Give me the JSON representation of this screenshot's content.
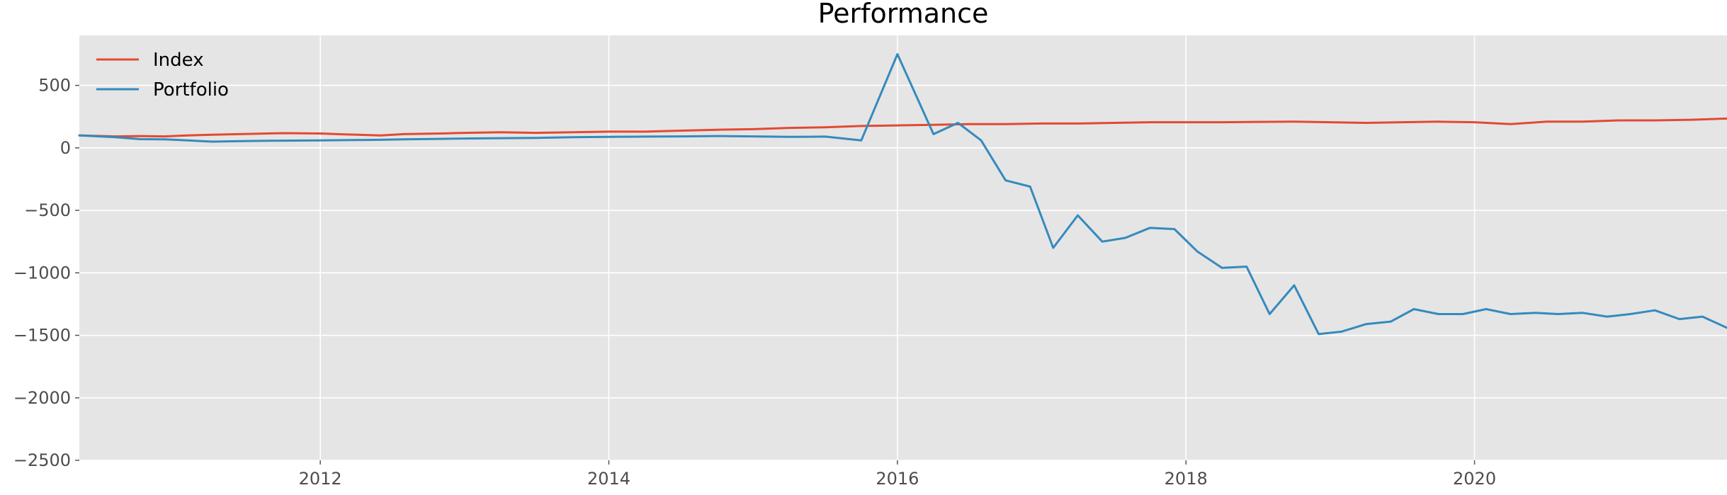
{
  "chart_data": {
    "type": "line",
    "title": "Performance",
    "xlabel": "",
    "ylabel": "",
    "xlim": [
      2010.33,
      2021.75
    ],
    "ylim": [
      -2500,
      900
    ],
    "x_ticks": [
      {
        "value": 2012,
        "label": "2012"
      },
      {
        "value": 2014,
        "label": "2014"
      },
      {
        "value": 2016,
        "label": "2016"
      },
      {
        "value": 2018,
        "label": "2018"
      },
      {
        "value": 2020,
        "label": "2020"
      }
    ],
    "y_ticks": [
      {
        "value": 500,
        "label": "500"
      },
      {
        "value": 0,
        "label": "0"
      },
      {
        "value": -500,
        "label": "−500"
      },
      {
        "value": -1000,
        "label": "−1000"
      },
      {
        "value": -1500,
        "label": "−1500"
      },
      {
        "value": -2000,
        "label": "−2000"
      },
      {
        "value": -2500,
        "label": "−2500"
      }
    ],
    "grid": true,
    "legend_position": "top-left",
    "background": "#e5e5e5",
    "series": [
      {
        "name": "Index",
        "color": "#e24a33",
        "points": [
          [
            2010.33,
            100
          ],
          [
            2010.58,
            92
          ],
          [
            2010.75,
            95
          ],
          [
            2010.92,
            92
          ],
          [
            2011.08,
            100
          ],
          [
            2011.25,
            105
          ],
          [
            2011.5,
            112
          ],
          [
            2011.75,
            118
          ],
          [
            2012.0,
            115
          ],
          [
            2012.17,
            108
          ],
          [
            2012.42,
            100
          ],
          [
            2012.58,
            110
          ],
          [
            2012.83,
            115
          ],
          [
            2013.0,
            120
          ],
          [
            2013.25,
            125
          ],
          [
            2013.5,
            120
          ],
          [
            2013.75,
            125
          ],
          [
            2014.0,
            130
          ],
          [
            2014.25,
            130
          ],
          [
            2014.5,
            138
          ],
          [
            2014.75,
            145
          ],
          [
            2015.0,
            150
          ],
          [
            2015.25,
            160
          ],
          [
            2015.5,
            165
          ],
          [
            2015.75,
            175
          ],
          [
            2016.0,
            180
          ],
          [
            2016.25,
            185
          ],
          [
            2016.5,
            190
          ],
          [
            2016.75,
            190
          ],
          [
            2017.0,
            195
          ],
          [
            2017.25,
            195
          ],
          [
            2017.5,
            200
          ],
          [
            2017.75,
            205
          ],
          [
            2018.0,
            205
          ],
          [
            2018.25,
            205
          ],
          [
            2018.5,
            208
          ],
          [
            2018.75,
            210
          ],
          [
            2019.0,
            205
          ],
          [
            2019.25,
            200
          ],
          [
            2019.5,
            205
          ],
          [
            2019.75,
            210
          ],
          [
            2020.0,
            205
          ],
          [
            2020.25,
            190
          ],
          [
            2020.5,
            210
          ],
          [
            2020.75,
            210
          ],
          [
            2021.0,
            220
          ],
          [
            2021.25,
            220
          ],
          [
            2021.5,
            225
          ],
          [
            2021.75,
            235
          ]
        ]
      },
      {
        "name": "Portfolio",
        "color": "#348abd",
        "points": [
          [
            2010.33,
            100
          ],
          [
            2010.58,
            85
          ],
          [
            2010.75,
            70
          ],
          [
            2010.92,
            68
          ],
          [
            2011.08,
            60
          ],
          [
            2011.25,
            50
          ],
          [
            2011.5,
            55
          ],
          [
            2011.75,
            58
          ],
          [
            2012.0,
            60
          ],
          [
            2012.17,
            62
          ],
          [
            2012.42,
            65
          ],
          [
            2012.58,
            68
          ],
          [
            2012.83,
            72
          ],
          [
            2013.0,
            75
          ],
          [
            2013.25,
            78
          ],
          [
            2013.5,
            80
          ],
          [
            2013.75,
            85
          ],
          [
            2014.0,
            88
          ],
          [
            2014.25,
            90
          ],
          [
            2014.5,
            92
          ],
          [
            2014.75,
            95
          ],
          [
            2015.0,
            92
          ],
          [
            2015.25,
            88
          ],
          [
            2015.5,
            90
          ],
          [
            2015.75,
            60
          ],
          [
            2016.0,
            750
          ],
          [
            2016.25,
            110
          ],
          [
            2016.42,
            200
          ],
          [
            2016.58,
            60
          ],
          [
            2016.75,
            -260
          ],
          [
            2016.92,
            -310
          ],
          [
            2017.08,
            -800
          ],
          [
            2017.25,
            -540
          ],
          [
            2017.42,
            -750
          ],
          [
            2017.58,
            -720
          ],
          [
            2017.75,
            -640
          ],
          [
            2017.92,
            -650
          ],
          [
            2018.08,
            -830
          ],
          [
            2018.25,
            -960
          ],
          [
            2018.42,
            -950
          ],
          [
            2018.58,
            -1330
          ],
          [
            2018.75,
            -1100
          ],
          [
            2018.92,
            -1490
          ],
          [
            2019.08,
            -1470
          ],
          [
            2019.25,
            -1410
          ],
          [
            2019.42,
            -1390
          ],
          [
            2019.58,
            -1290
          ],
          [
            2019.75,
            -1330
          ],
          [
            2019.92,
            -1330
          ],
          [
            2020.08,
            -1290
          ],
          [
            2020.25,
            -1330
          ],
          [
            2020.42,
            -1320
          ],
          [
            2020.58,
            -1330
          ],
          [
            2020.75,
            -1320
          ],
          [
            2020.92,
            -1350
          ],
          [
            2021.08,
            -1330
          ],
          [
            2021.25,
            -1300
          ],
          [
            2021.42,
            -1370
          ],
          [
            2021.58,
            -1350
          ],
          [
            2021.75,
            -1440
          ]
        ]
      }
    ]
  }
}
